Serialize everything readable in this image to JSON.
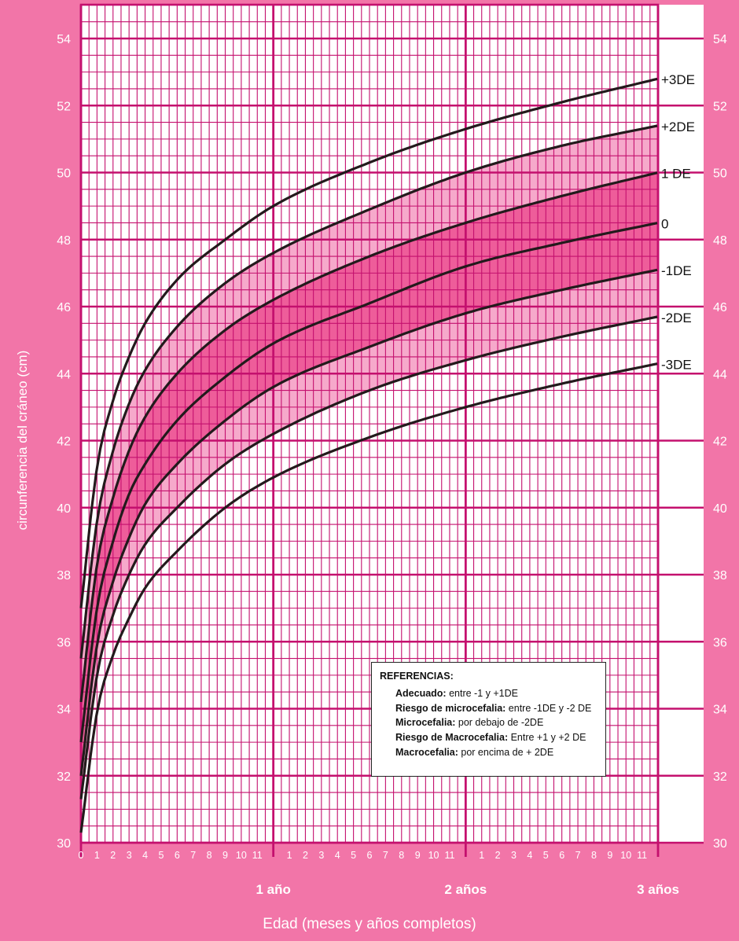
{
  "chart_data": {
    "type": "line",
    "ylabel": "circunferencia del cráneo (cm)",
    "xlabel": "Edad (meses y años completos)",
    "ylim": [
      30,
      55
    ],
    "xlim": [
      0,
      36
    ],
    "y_ticks": [
      30,
      32,
      34,
      36,
      38,
      40,
      42,
      44,
      46,
      48,
      50,
      52,
      54
    ],
    "month_tick_labels": [
      "0",
      "1",
      "2",
      "3",
      "4",
      "5",
      "6",
      "7",
      "8",
      "9",
      "10",
      "11",
      "1",
      "2",
      "3",
      "4",
      "5",
      "6",
      "7",
      "8",
      "9",
      "10",
      "11",
      "1",
      "2",
      "3",
      "4",
      "5",
      "6",
      "7",
      "8",
      "9",
      "10",
      "11"
    ],
    "year_labels": [
      {
        "label": "1 año",
        "month": 12
      },
      {
        "label": "2 años",
        "month": 24
      },
      {
        "label": "3 años",
        "month": 36
      }
    ],
    "grid": true,
    "x": [
      0,
      1,
      2,
      3,
      4,
      6,
      9,
      12,
      18,
      24,
      30,
      36
    ],
    "series": [
      {
        "name": "+3DE",
        "values": [
          37.0,
          41.2,
          43.2,
          44.5,
          45.5,
          46.8,
          48.0,
          49.0,
          50.3,
          51.3,
          52.1,
          52.8
        ]
      },
      {
        "name": "+2DE",
        "values": [
          35.5,
          39.6,
          41.7,
          43.1,
          44.1,
          45.4,
          46.7,
          47.6,
          48.9,
          50.0,
          50.8,
          51.4
        ]
      },
      {
        "name": "1 DE",
        "values": [
          34.2,
          38.3,
          40.3,
          41.7,
          42.7,
          44.0,
          45.3,
          46.2,
          47.5,
          48.5,
          49.3,
          50.0
        ]
      },
      {
        "name": "0",
        "values": [
          33.0,
          37.0,
          39.0,
          40.4,
          41.3,
          42.6,
          43.9,
          44.9,
          46.1,
          47.2,
          47.9,
          48.5
        ]
      },
      {
        "name": "-1DE",
        "values": [
          32.0,
          35.9,
          37.8,
          39.1,
          40.1,
          41.3,
          42.6,
          43.6,
          44.8,
          45.8,
          46.5,
          47.1
        ]
      },
      {
        "name": "-2DE",
        "values": [
          31.3,
          35.0,
          36.8,
          38.0,
          38.9,
          40.0,
          41.3,
          42.2,
          43.5,
          44.4,
          45.1,
          45.7
        ]
      },
      {
        "name": "-3DE",
        "values": [
          30.3,
          33.9,
          35.6,
          36.7,
          37.6,
          38.7,
          40.0,
          40.9,
          42.1,
          43.0,
          43.7,
          44.3
        ]
      }
    ]
  },
  "legend": {
    "title": "REFERENCIAS:",
    "rows": [
      {
        "term": "Adecuado:",
        "text": " entre -1 y +1DE"
      },
      {
        "term": "Riesgo de microcefalia:",
        "text": " entre -1DE y -2 DE"
      },
      {
        "term": "Microcefalia:",
        "text": " por debajo de -2DE"
      },
      {
        "term": "Riesgo de Macrocefalia:",
        "text": " Entre +1 y +2 DE"
      },
      {
        "term": "Macrocefalia:",
        "text": " por encima de + 2DE"
      }
    ]
  },
  "colors": {
    "background": "#f275a8",
    "plot_area": "#ffffff",
    "grid": "#c4106e",
    "band_outer": "#f6a9cb",
    "band_inner": "#ee5d9a",
    "curves": "#231a1c"
  }
}
